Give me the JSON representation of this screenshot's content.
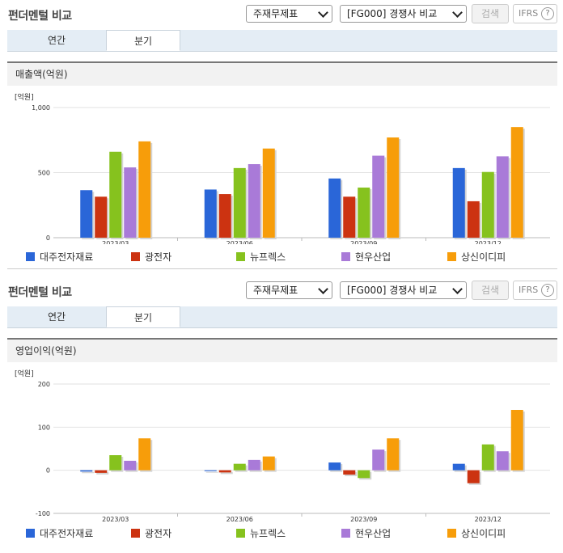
{
  "sections": [
    {
      "title": "펀더멘털 비교",
      "select1": "주재무제표",
      "select2": "[FG000] 경쟁사 비교",
      "search_label": "검색",
      "ifrs_label": "IFRS",
      "help_label": "?",
      "tabs": [
        "연간",
        "분기"
      ],
      "active_tab": 1,
      "metric_label": "매출액(억원)"
    },
    {
      "title": "펀더멘털 비교",
      "select1": "주재무제표",
      "select2": "[FG000] 경쟁사 비교",
      "search_label": "검색",
      "ifrs_label": "IFRS",
      "help_label": "?",
      "tabs": [
        "연간",
        "분기"
      ],
      "active_tab": 1,
      "metric_label": "영업이익(억원)"
    }
  ],
  "series_colors": [
    "#2a66d8",
    "#cc3311",
    "#86c21e",
    "#a97ad8",
    "#f79d0a"
  ],
  "chart_data": [
    {
      "type": "bar",
      "unit_label": "[억원]",
      "categories": [
        "2023/03",
        "2023/06",
        "2023/09",
        "2023/12"
      ],
      "ylim": [
        0,
        1000
      ],
      "yticks": [
        0,
        500,
        1000
      ],
      "ytick_labels": [
        "0",
        "500",
        "1,000"
      ],
      "grid": true,
      "legend": "bottom",
      "series": [
        {
          "name": "대주전자재료",
          "values": [
            365,
            370,
            455,
            535
          ]
        },
        {
          "name": "광전자",
          "values": [
            315,
            335,
            315,
            280
          ]
        },
        {
          "name": "뉴프렉스",
          "values": [
            660,
            535,
            385,
            505
          ]
        },
        {
          "name": "현우산업",
          "values": [
            540,
            565,
            630,
            625
          ]
        },
        {
          "name": "상신이디피",
          "values": [
            740,
            685,
            770,
            850
          ]
        }
      ]
    },
    {
      "type": "bar",
      "unit_label": "[억원]",
      "categories": [
        "2023/03",
        "2023/06",
        "2023/09",
        "2023/12"
      ],
      "ylim": [
        -100,
        200
      ],
      "yticks": [
        -100,
        0,
        100,
        200
      ],
      "ytick_labels": [
        "-100",
        "0",
        "100",
        "200"
      ],
      "grid": true,
      "legend": "bottom",
      "series": [
        {
          "name": "대주전자재료",
          "values": [
            -3,
            -2,
            18,
            15
          ]
        },
        {
          "name": "광전자",
          "values": [
            -6,
            -5,
            -10,
            -30
          ]
        },
        {
          "name": "뉴프렉스",
          "values": [
            35,
            15,
            -18,
            60
          ]
        },
        {
          "name": "현우산업",
          "values": [
            22,
            24,
            48,
            44
          ]
        },
        {
          "name": "상신이디피",
          "values": [
            74,
            32,
            74,
            140
          ]
        }
      ]
    }
  ]
}
